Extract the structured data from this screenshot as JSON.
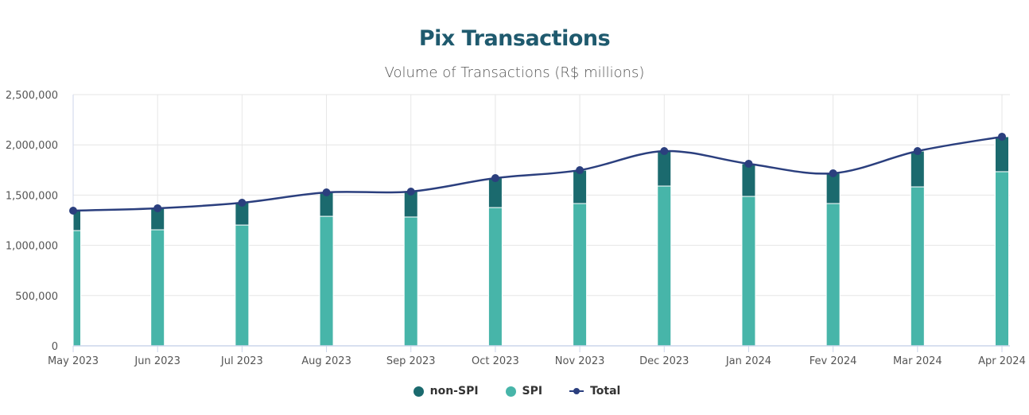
{
  "chart_data": {
    "type": "bar",
    "title": "Pix Transactions",
    "subtitle": "Volume of Transactions (R$ millions)",
    "xlabel": "",
    "ylabel": "",
    "ylim": [
      0,
      2500000
    ],
    "y_ticks": [
      0,
      500000,
      1000000,
      1500000,
      2000000,
      2500000
    ],
    "y_tick_labels": [
      "0",
      "500,000",
      "1,000,000",
      "1,500,000",
      "2,000,000",
      "2,500,000"
    ],
    "grid": true,
    "stacked": true,
    "legend_position": "bottom-center",
    "categories": [
      "May 2023",
      "Jun 2023",
      "Jul 2023",
      "Aug 2023",
      "Sep 2023",
      "Oct 2023",
      "Nov 2023",
      "Dec 2023",
      "Jan 2024",
      "Fev 2024",
      "Mar 2024",
      "Apr 2024"
    ],
    "series": [
      {
        "name": "SPI",
        "type": "bar",
        "color": "#47b5a9",
        "values": [
          1147000,
          1155000,
          1202000,
          1289000,
          1282000,
          1376000,
          1416000,
          1590000,
          1487000,
          1416000,
          1582000,
          1733000
        ]
      },
      {
        "name": "non-SPI",
        "type": "bar",
        "color": "#1b6a6e",
        "values": [
          198000,
          214000,
          222000,
          238000,
          253000,
          293000,
          332000,
          348000,
          325000,
          301000,
          356000,
          348000
        ]
      },
      {
        "name": "Total",
        "type": "line",
        "color": "#2b3f7e",
        "values": [
          1345000,
          1369000,
          1424000,
          1527000,
          1535000,
          1669000,
          1748000,
          1938000,
          1812000,
          1717000,
          1938000,
          2081000
        ]
      }
    ]
  },
  "legend": [
    {
      "label": "non-SPI",
      "color": "#1b6a6e",
      "symbol": "circle"
    },
    {
      "label": "SPI",
      "color": "#47b5a9",
      "symbol": "circle"
    },
    {
      "label": "Total",
      "color": "#2b3f7e",
      "symbol": "line-marker"
    }
  ]
}
